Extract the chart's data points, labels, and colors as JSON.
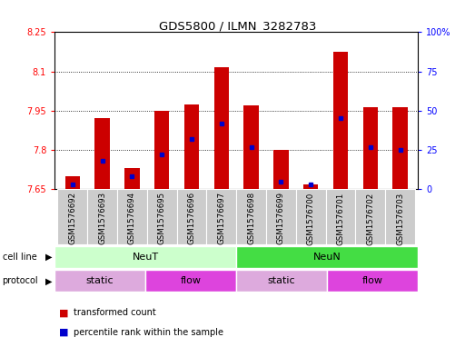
{
  "title": "GDS5800 / ILMN_3282783",
  "samples": [
    "GSM1576692",
    "GSM1576693",
    "GSM1576694",
    "GSM1576695",
    "GSM1576696",
    "GSM1576697",
    "GSM1576698",
    "GSM1576699",
    "GSM1576700",
    "GSM1576701",
    "GSM1576702",
    "GSM1576703"
  ],
  "transformed_count": [
    7.7,
    7.92,
    7.73,
    7.95,
    7.975,
    8.115,
    7.97,
    7.8,
    7.67,
    8.175,
    7.965,
    7.965
  ],
  "percentile_rank": [
    3,
    18,
    8,
    22,
    32,
    42,
    27,
    5,
    3,
    45,
    27,
    25
  ],
  "bar_bottom": 7.65,
  "ymin": 7.65,
  "ymax": 8.25,
  "yticks": [
    7.65,
    7.8,
    7.95,
    8.1,
    8.25
  ],
  "ytick_labels": [
    "7.65",
    "7.8",
    "7.95",
    "8.1",
    "8.25"
  ],
  "right_yticks": [
    0,
    25,
    50,
    75,
    100
  ],
  "right_ytick_labels": [
    "0",
    "25",
    "50",
    "75",
    "100%"
  ],
  "bar_color": "#cc0000",
  "dot_color": "#0000cc",
  "cell_line_labels": [
    "NeuT",
    "NeuN"
  ],
  "cell_line_colors": [
    "#ccffcc",
    "#44dd44"
  ],
  "protocol_labels": [
    "static",
    "flow",
    "static",
    "flow"
  ],
  "protocol_colors": [
    "#ddaadd",
    "#dd44dd",
    "#ddaadd",
    "#dd44dd"
  ],
  "legend_items": [
    "transformed count",
    "percentile rank within the sample"
  ],
  "legend_colors": [
    "#cc0000",
    "#0000cc"
  ],
  "plot_bg": "#ffffff",
  "tick_bg": "#cccccc",
  "bar_width": 0.5
}
